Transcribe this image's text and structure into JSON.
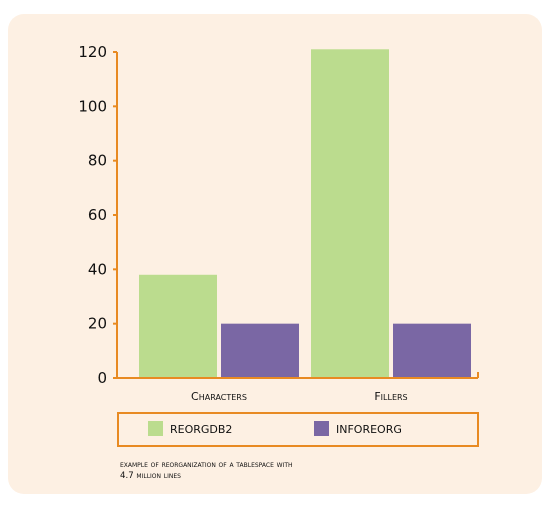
{
  "chart_data": {
    "type": "bar",
    "title": "",
    "xlabel": "",
    "ylabel": "",
    "categories": [
      "Characters",
      "Fillers"
    ],
    "series": [
      {
        "name": "REORGDB2",
        "values": [
          38,
          121
        ]
      },
      {
        "name": "INFOREORG",
        "values": [
          20,
          20
        ]
      }
    ],
    "ylim": [
      0,
      120
    ],
    "yticks": [
      0,
      20,
      40,
      60,
      80,
      100,
      120
    ],
    "grid": false,
    "legend_position": "bottom",
    "colors": {
      "REORGDB2": "#bbdc8e",
      "INFOREORG": "#7a67a4",
      "axis": "#e88a22",
      "panel": "#fdf0e3",
      "legend_border": "#e88a22"
    },
    "caption": "Example of reorganization of a Tablespace with\n4.7 million lines"
  }
}
